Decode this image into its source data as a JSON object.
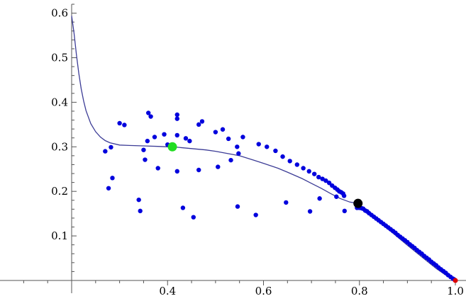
{
  "chart_data": {
    "type": "scatter",
    "title": "",
    "xlabel": "",
    "ylabel": "",
    "xlim": [
      0.2,
      1.0
    ],
    "ylim": [
      0.0,
      0.62
    ],
    "x_axis_position_y": 0.0,
    "y_axis_position_x": 0.2,
    "x_ticks": [
      {
        "value": 0.4,
        "label": "0.4"
      },
      {
        "value": 0.6,
        "label": "0.6"
      },
      {
        "value": 0.8,
        "label": "0.8"
      },
      {
        "value": 1.0,
        "label": "1.0"
      }
    ],
    "y_ticks": [
      {
        "value": 0.1,
        "label": "0.1"
      },
      {
        "value": 0.2,
        "label": "0.2"
      },
      {
        "value": 0.3,
        "label": "0.3"
      },
      {
        "value": 0.4,
        "label": "0.4"
      },
      {
        "value": 0.5,
        "label": "0.5"
      },
      {
        "value": 0.6,
        "label": "0.6"
      }
    ],
    "minor_x_step": 0.05,
    "minor_y_step": 0.02,
    "grid": false,
    "colors": {
      "points": "#0000dd",
      "curve": "#3c3c96",
      "green_marker": "#22dd22",
      "black_marker": "#000000",
      "red_marker": "#dd0000",
      "axis": "#555555"
    },
    "series": [
      {
        "kind": "points",
        "points": [
          [
            0.27,
            0.29
          ],
          [
            0.277,
            0.207
          ],
          [
            0.282,
            0.299
          ],
          [
            0.285,
            0.23
          ],
          [
            0.3,
            0.353
          ],
          [
            0.31,
            0.349
          ],
          [
            0.34,
            0.181
          ],
          [
            0.343,
            0.156
          ],
          [
            0.35,
            0.293
          ],
          [
            0.353,
            0.271
          ],
          [
            0.358,
            0.313
          ],
          [
            0.36,
            0.376
          ],
          [
            0.365,
            0.368
          ],
          [
            0.373,
            0.322
          ],
          [
            0.38,
            0.252
          ],
          [
            0.393,
            0.328
          ],
          [
            0.4,
            0.305
          ],
          [
            0.42,
            0.372
          ],
          [
            0.42,
            0.363
          ],
          [
            0.42,
            0.326
          ],
          [
            0.42,
            0.245
          ],
          [
            0.432,
            0.163
          ],
          [
            0.438,
            0.319
          ],
          [
            0.446,
            0.313
          ],
          [
            0.454,
            0.142
          ],
          [
            0.465,
            0.35
          ],
          [
            0.465,
            0.248
          ],
          [
            0.472,
            0.357
          ],
          [
            0.5,
            0.333
          ],
          [
            0.505,
            0.255
          ],
          [
            0.515,
            0.339
          ],
          [
            0.527,
            0.318
          ],
          [
            0.532,
            0.27
          ],
          [
            0.545,
            0.3
          ],
          [
            0.546,
            0.166
          ],
          [
            0.548,
            0.285
          ],
          [
            0.557,
            0.322
          ],
          [
            0.584,
            0.147
          ],
          [
            0.59,
            0.306
          ],
          [
            0.607,
            0.3
          ],
          [
            0.625,
            0.291
          ],
          [
            0.64,
            0.278
          ],
          [
            0.647,
            0.175
          ],
          [
            0.655,
            0.268
          ],
          [
            0.67,
            0.26
          ],
          [
            0.683,
            0.252
          ],
          [
            0.695,
            0.245
          ],
          [
            0.697,
            0.155
          ],
          [
            0.706,
            0.239
          ],
          [
            0.715,
            0.232
          ],
          [
            0.717,
            0.184
          ],
          [
            0.723,
            0.228
          ],
          [
            0.73,
            0.224
          ],
          [
            0.737,
            0.219
          ],
          [
            0.743,
            0.213
          ],
          [
            0.749,
            0.208
          ],
          [
            0.754,
            0.204
          ],
          [
            0.758,
            0.2
          ],
          [
            0.762,
            0.198
          ],
          [
            0.766,
            0.195
          ],
          [
            0.768,
            0.19
          ],
          [
            0.752,
            0.188
          ],
          [
            0.769,
            0.156
          ],
          [
            0.795,
            0.163
          ],
          [
            0.8,
            0.163
          ],
          [
            0.805,
            0.162
          ],
          [
            0.808,
            0.161
          ],
          [
            0.812,
            0.157
          ],
          [
            0.816,
            0.155
          ],
          [
            0.82,
            0.151
          ],
          [
            0.825,
            0.147
          ],
          [
            0.83,
            0.143
          ],
          [
            0.835,
            0.139
          ],
          [
            0.84,
            0.135
          ],
          [
            0.845,
            0.131
          ],
          [
            0.85,
            0.127
          ],
          [
            0.855,
            0.123
          ],
          [
            0.86,
            0.119
          ],
          [
            0.865,
            0.115
          ],
          [
            0.87,
            0.111
          ],
          [
            0.875,
            0.107
          ],
          [
            0.88,
            0.102
          ],
          [
            0.885,
            0.098
          ],
          [
            0.89,
            0.094
          ],
          [
            0.895,
            0.09
          ],
          [
            0.9,
            0.086
          ],
          [
            0.905,
            0.081
          ],
          [
            0.91,
            0.077
          ],
          [
            0.915,
            0.073
          ],
          [
            0.92,
            0.068
          ],
          [
            0.925,
            0.064
          ],
          [
            0.93,
            0.06
          ],
          [
            0.935,
            0.055
          ],
          [
            0.94,
            0.051
          ],
          [
            0.945,
            0.047
          ],
          [
            0.95,
            0.042
          ],
          [
            0.955,
            0.038
          ],
          [
            0.96,
            0.034
          ],
          [
            0.965,
            0.029
          ],
          [
            0.97,
            0.025
          ],
          [
            0.975,
            0.021
          ],
          [
            0.98,
            0.017
          ],
          [
            0.985,
            0.012
          ],
          [
            0.99,
            0.008
          ],
          [
            0.995,
            0.004
          ],
          [
            0.998,
            0.002
          ]
        ]
      },
      {
        "kind": "curve",
        "points": [
          [
            0.2,
            0.594
          ],
          [
            0.205,
            0.555
          ],
          [
            0.21,
            0.506
          ],
          [
            0.215,
            0.465
          ],
          [
            0.22,
            0.43
          ],
          [
            0.225,
            0.403
          ],
          [
            0.23,
            0.381
          ],
          [
            0.24,
            0.352
          ],
          [
            0.25,
            0.334
          ],
          [
            0.26,
            0.322
          ],
          [
            0.27,
            0.314
          ],
          [
            0.28,
            0.309
          ],
          [
            0.3,
            0.304
          ],
          [
            0.32,
            0.303
          ],
          [
            0.35,
            0.302
          ],
          [
            0.38,
            0.301
          ],
          [
            0.4,
            0.3
          ],
          [
            0.42,
            0.299
          ],
          [
            0.45,
            0.296
          ],
          [
            0.48,
            0.293
          ],
          [
            0.5,
            0.29
          ],
          [
            0.53,
            0.284
          ],
          [
            0.55,
            0.28
          ],
          [
            0.58,
            0.27
          ],
          [
            0.6,
            0.263
          ],
          [
            0.63,
            0.252
          ],
          [
            0.65,
            0.243
          ],
          [
            0.68,
            0.229
          ],
          [
            0.7,
            0.218
          ],
          [
            0.72,
            0.207
          ],
          [
            0.74,
            0.195
          ],
          [
            0.76,
            0.184
          ],
          [
            0.78,
            0.176
          ],
          [
            0.797,
            0.173
          ],
          [
            0.81,
            0.16
          ],
          [
            0.84,
            0.132
          ],
          [
            0.87,
            0.106
          ],
          [
            0.9,
            0.079
          ],
          [
            0.93,
            0.053
          ],
          [
            0.96,
            0.027
          ],
          [
            0.98,
            0.012
          ],
          [
            1.0,
            0.0
          ]
        ]
      },
      {
        "kind": "marker",
        "name_hint": "green",
        "point": [
          0.41,
          0.3
        ],
        "color": "#22dd22"
      },
      {
        "kind": "marker",
        "name_hint": "black",
        "point": [
          0.797,
          0.173
        ],
        "color": "#000000"
      },
      {
        "kind": "marker",
        "name_hint": "red",
        "point": [
          1.0,
          0.0
        ],
        "color": "#dd0000"
      }
    ]
  }
}
